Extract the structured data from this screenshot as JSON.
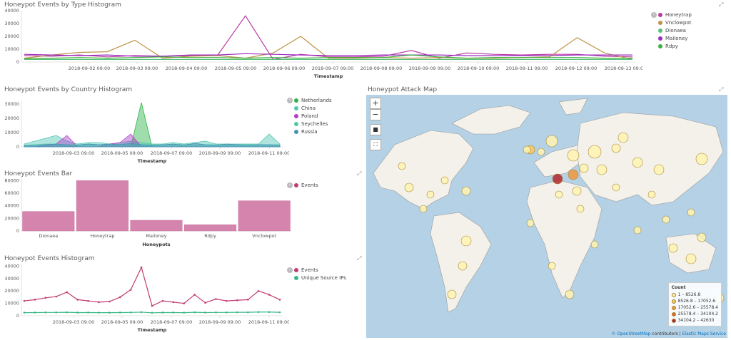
{
  "colors": {
    "honeytrap": "#b93aa5",
    "vnclowpot": "#c09346",
    "dionaea": "#57c17b",
    "mailoney": "#9c2cc0",
    "rdpy": "#3cb03c",
    "netherlands": "#2db34a",
    "china": "#50c6b3",
    "poland": "#b03cc9",
    "seychelles": "#4fc9a8",
    "russia": "#4a90b8",
    "bar": "#d585ad",
    "events": "#c23b72",
    "unique": "#3ab886"
  },
  "panels": {
    "type_hist": {
      "title": "Honeypot Events by Type Histogram",
      "xlabel": "Timestamp"
    },
    "country_hist": {
      "title": "Honeypot Events by Country Histogram",
      "xlabel": "Timestamp"
    },
    "bar": {
      "title": "Honeypot Events Bar",
      "xlabel": "Honeypots"
    },
    "events_hist": {
      "title": "Honeypot Events Histogram",
      "xlabel": "Timestamp"
    },
    "map": {
      "title": "Honeypot Attack Map"
    }
  },
  "map_controls": {
    "zoom_in": "+",
    "zoom_out": "−",
    "draw": "■",
    "fit": "⛶"
  },
  "map_legend": {
    "title": "Count",
    "ranges": [
      "1 – 8526.8",
      "8526.8 – 17052.6",
      "17052.6 – 25578.4",
      "25578.4 – 34104.2",
      "34104.2 – 42630"
    ],
    "colors": [
      "#fff3b0",
      "#f9c95a",
      "#f0983a",
      "#e06a2a",
      "#b3262b"
    ]
  },
  "attribution": {
    "osm": "© OpenStreetMap",
    "contributors": "contributors",
    "ems": "Elastic Maps Service"
  },
  "chart_data": [
    {
      "type": "line",
      "title": "Honeypot Events by Type Histogram",
      "xlabel": "Timestamp",
      "x_ticks": [
        "2018-09-02 09:00",
        "2018-09-03 09:00",
        "2018-09-04 09:00",
        "2018-09-05 09:00",
        "2018-09-06 09:00",
        "2018-09-07 09:00",
        "2018-09-08 09:00",
        "2018-09-09 09:00",
        "2018-09-10 09:00",
        "2018-09-11 09:00",
        "2018-09-12 09:00",
        "2018-09-13 09:00"
      ],
      "y_ticks": [
        "0",
        "10000",
        "20000",
        "30000",
        "40000"
      ],
      "ylim": [
        0,
        40000
      ],
      "series": [
        {
          "name": "Honeytrap",
          "values": [
            5000,
            4500,
            5500,
            4000,
            5000,
            4500,
            5000,
            5500,
            36000,
            2000,
            6000,
            4000,
            4000,
            4500,
            9000,
            3000,
            7000,
            6000,
            5500,
            6000,
            6000,
            4500,
            4000
          ]
        },
        {
          "name": "Vnclowpot",
          "values": [
            3000,
            5500,
            7500,
            8000,
            17000,
            3000,
            4500,
            5000,
            3000,
            7000,
            20000,
            3000,
            3000,
            3500,
            3000,
            3500,
            3000,
            3000,
            3500,
            4000,
            19000,
            7000,
            2000
          ]
        },
        {
          "name": "Dionaea",
          "values": [
            2000,
            2000,
            2000,
            2000,
            2000,
            2000,
            2000,
            2000,
            2000,
            2000,
            2000,
            2000,
            2000,
            2000,
            2000,
            2000,
            2000,
            2000,
            2000,
            2000,
            2000,
            2000,
            2000
          ]
        },
        {
          "name": "Mailoney",
          "values": [
            6000,
            5500,
            5000,
            5500,
            4500,
            4500,
            5500,
            5500,
            6500,
            6000,
            5500,
            5000,
            5000,
            5500,
            5500,
            5500,
            5000,
            5000,
            5000,
            5000,
            5500,
            5500,
            5500
          ]
        },
        {
          "name": "Rdpy",
          "values": [
            2500,
            3000,
            3500,
            3000,
            3500,
            4000,
            3500,
            3500,
            3000,
            3500,
            3000,
            3500,
            3500,
            3500,
            5500,
            4000,
            3000,
            3500,
            3500,
            3500,
            3500,
            3000,
            3000
          ]
        }
      ]
    },
    {
      "type": "area",
      "title": "Honeypot Events by Country Histogram",
      "xlabel": "Timestamp",
      "x_ticks": [
        "2018-09-03 09:00",
        "2018-09-05 09:00",
        "2018-09-07 09:00",
        "2018-09-09 09:00",
        "2018-09-11 09:00"
      ],
      "y_ticks": [
        "0",
        "10000",
        "20000",
        "30000"
      ],
      "ylim": [
        0,
        33000
      ],
      "series": [
        {
          "name": "Netherlands",
          "values": [
            0,
            0,
            0,
            0,
            0,
            0,
            0,
            0,
            0,
            0,
            0,
            31000,
            0,
            0,
            0,
            0,
            0,
            0,
            0,
            0,
            0,
            0,
            0,
            0,
            0
          ]
        },
        {
          "name": "China",
          "values": [
            2000,
            4000,
            6000,
            8000,
            4000,
            2000,
            3000,
            3000,
            2000,
            3000,
            4000,
            3000,
            2000,
            2000,
            3000,
            2000,
            3000,
            4000,
            2000,
            2000,
            2000,
            2000,
            2000,
            9000,
            2000
          ]
        },
        {
          "name": "Poland",
          "values": [
            0,
            0,
            1000,
            2000,
            8000,
            0,
            0,
            0,
            2000,
            3000,
            9000,
            0,
            0,
            0,
            0,
            0,
            0,
            0,
            0,
            0,
            0,
            0,
            0,
            0,
            0
          ]
        },
        {
          "name": "Seychelles",
          "values": [
            1000,
            1500,
            2000,
            2000,
            1500,
            1500,
            2000,
            1500,
            1500,
            2000,
            2000,
            1500,
            1500,
            1500,
            1500,
            2000,
            1500,
            1500,
            1500,
            1500,
            1500,
            1500,
            1500,
            1500,
            1500
          ]
        },
        {
          "name": "Russia",
          "values": [
            1000,
            1000,
            1500,
            2000,
            1500,
            1000,
            2000,
            1500,
            2000,
            1500,
            2500,
            1500,
            1000,
            1500,
            2000,
            1000,
            2500,
            1500,
            1000,
            2000,
            1500,
            1000,
            1500,
            1500,
            1000
          ]
        }
      ]
    },
    {
      "type": "bar",
      "title": "Honeypot Events Bar",
      "xlabel": "Honeypots",
      "categories": [
        "Dionaea",
        "Honeytrap",
        "Mailoney",
        "Rdpy",
        "Vnclowpot"
      ],
      "series": [
        {
          "name": "Events",
          "values": [
            31000,
            80000,
            17000,
            10000,
            48000
          ]
        }
      ],
      "y_ticks": [
        "0",
        "20000",
        "40000",
        "60000",
        "80000"
      ],
      "ylim": [
        0,
        85000
      ]
    },
    {
      "type": "line",
      "title": "Honeypot Events Histogram",
      "xlabel": "Timestamp",
      "x_ticks": [
        "2018-09-03 09:00",
        "2018-09-05 09:00",
        "2018-09-07 09:00",
        "2018-09-09 09:00",
        "2018-09-11 09:00"
      ],
      "y_ticks": [
        "0",
        "10000",
        "20000",
        "30000",
        "40000"
      ],
      "ylim": [
        0,
        42000
      ],
      "series": [
        {
          "name": "Events",
          "values": [
            12000,
            13000,
            14500,
            15500,
            19000,
            13000,
            12000,
            11000,
            11500,
            15000,
            21000,
            39000,
            8000,
            12000,
            11000,
            10000,
            17000,
            10500,
            13500,
            12000,
            12500,
            13000,
            20000,
            17000,
            13000
          ]
        },
        {
          "name": "Unique Source IPs",
          "values": [
            2500,
            2600,
            2700,
            2700,
            2800,
            2600,
            2600,
            2500,
            2500,
            2600,
            2700,
            2900,
            2400,
            2600,
            2600,
            2500,
            2800,
            2600,
            2700,
            2700,
            2800,
            2800,
            3000,
            3000,
            2800
          ]
        }
      ]
    }
  ]
}
